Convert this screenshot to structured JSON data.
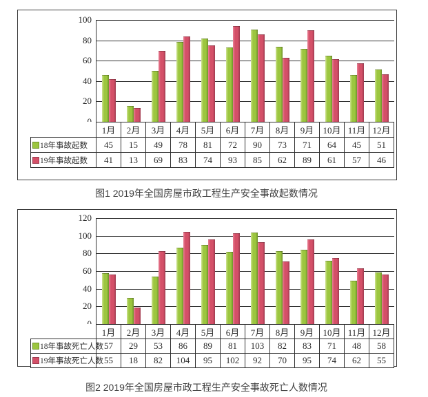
{
  "colors": {
    "green": {
      "light": "#cfe392",
      "main": "#9cc63f",
      "dark": "#6d9129"
    },
    "red": {
      "light": "#ea8196",
      "main": "#d45068",
      "dark": "#9c3a4f"
    },
    "grid": "#2e2e2e",
    "box_border": "#3a3a3a",
    "text": "#2b2b2b",
    "caption_text": "#3f3f3f"
  },
  "chart_data": [
    {
      "type": "bar",
      "title": "图1 2019年全国房屋市政工程生产安全事故起数情况",
      "categories": [
        "1月",
        "2月",
        "3月",
        "4月",
        "5月",
        "6月",
        "7月",
        "8月",
        "9月",
        "10月",
        "11月",
        "12月"
      ],
      "series": [
        {
          "name": "18年事故起数",
          "color_key": "green",
          "values": [
            45,
            15,
            49,
            78,
            81,
            72,
            90,
            73,
            71,
            64,
            45,
            51
          ]
        },
        {
          "name": "19年事故起数",
          "color_key": "red",
          "values": [
            41,
            13,
            69,
            83,
            74,
            93,
            85,
            62,
            89,
            61,
            57,
            46
          ]
        }
      ],
      "ylim": [
        0,
        100
      ],
      "yticks": [
        100,
        80,
        60,
        40,
        20,
        0
      ],
      "grid": true,
      "legend_position": "table-left",
      "data_table": true
    },
    {
      "type": "bar",
      "title": "图2 2019年全国房屋市政工程生产安全事故死亡人数情况",
      "categories": [
        "1月",
        "2月",
        "3月",
        "4月",
        "5月",
        "6月",
        "7月",
        "8月",
        "9月",
        "10月",
        "11月",
        "12月"
      ],
      "series": [
        {
          "name": "18年事故死亡人数",
          "color_key": "green",
          "values": [
            57,
            29,
            53,
            86,
            89,
            81,
            103,
            82,
            83,
            71,
            48,
            58
          ]
        },
        {
          "name": "19年事故死亡人数",
          "color_key": "red",
          "values": [
            55,
            18,
            82,
            104,
            95,
            102,
            92,
            70,
            95,
            74,
            62,
            55
          ]
        }
      ],
      "ylim": [
        0,
        120
      ],
      "yticks": [
        120,
        100,
        80,
        60,
        40,
        20,
        0
      ],
      "grid": true,
      "legend_position": "table-left",
      "data_table": true
    }
  ]
}
